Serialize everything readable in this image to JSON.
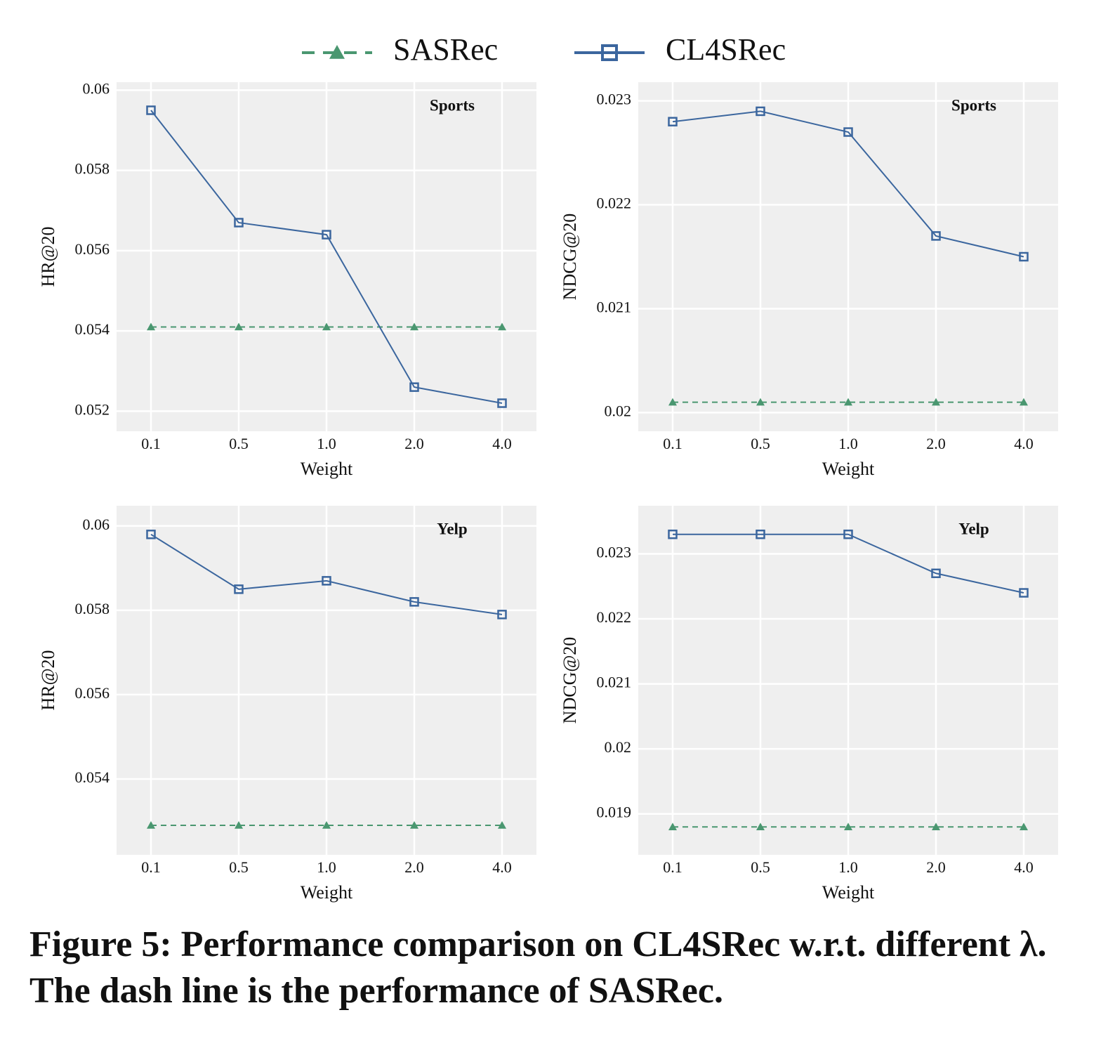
{
  "legend": [
    {
      "name": "SASRec",
      "color": "#4a9770",
      "marker": "triangle",
      "dashed": true
    },
    {
      "name": "CL4SRec",
      "color": "#3b669e",
      "marker": "square",
      "dashed": false
    }
  ],
  "chart_data": [
    {
      "type": "line",
      "annotation": "Sports",
      "x_label": "Weight",
      "y_label": "HR@20",
      "categories": [
        "0.1",
        "0.5",
        "1.0",
        "2.0",
        "4.0"
      ],
      "series": [
        {
          "values": [
            0.0541,
            0.0541,
            0.0541,
            0.0541,
            0.0541
          ]
        },
        {
          "values": [
            0.0595,
            0.0567,
            0.0564,
            0.0526,
            0.0522
          ]
        }
      ],
      "ylim": [
        0.0515,
        0.0602
      ],
      "yticks": [
        0.052,
        0.054,
        0.056,
        0.058,
        0.06
      ],
      "grid": true
    },
    {
      "type": "line",
      "annotation": "Sports",
      "x_label": "Weight",
      "y_label": "NDCG@20",
      "categories": [
        "0.1",
        "0.5",
        "1.0",
        "2.0",
        "4.0"
      ],
      "series": [
        {
          "values": [
            0.0201,
            0.0201,
            0.0201,
            0.0201,
            0.0201
          ]
        },
        {
          "values": [
            0.0228,
            0.0229,
            0.0227,
            0.0217,
            0.0215
          ]
        }
      ],
      "ylim": [
        0.01982,
        0.02318
      ],
      "yticks": [
        0.02,
        0.021,
        0.022,
        0.023
      ],
      "grid": true
    },
    {
      "type": "line",
      "annotation": "Yelp",
      "x_label": "Weight",
      "y_label": "HR@20",
      "categories": [
        "0.1",
        "0.5",
        "1.0",
        "2.0",
        "4.0"
      ],
      "series": [
        {
          "values": [
            0.0529,
            0.0529,
            0.0529,
            0.0529,
            0.0529
          ]
        },
        {
          "values": [
            0.0598,
            0.0585,
            0.0587,
            0.0582,
            0.0579
          ]
        }
      ],
      "ylim": [
        0.0522,
        0.06048
      ],
      "yticks": [
        0.054,
        0.056,
        0.058,
        0.06
      ],
      "grid": true
    },
    {
      "type": "line",
      "annotation": "Yelp",
      "x_label": "Weight",
      "y_label": "NDCG@20",
      "categories": [
        "0.1",
        "0.5",
        "1.0",
        "2.0",
        "4.0"
      ],
      "series": [
        {
          "values": [
            0.0188,
            0.0188,
            0.0188,
            0.0188,
            0.0188
          ]
        },
        {
          "values": [
            0.0233,
            0.0233,
            0.0233,
            0.0227,
            0.0224
          ]
        }
      ],
      "ylim": [
        0.01837,
        0.02374
      ],
      "yticks": [
        0.019,
        0.02,
        0.021,
        0.022,
        0.023
      ],
      "grid": true
    }
  ],
  "caption": "Figure 5: Performance comparison on CL4SRec w.r.t. different λ. The dash line is the performance of SASRec."
}
